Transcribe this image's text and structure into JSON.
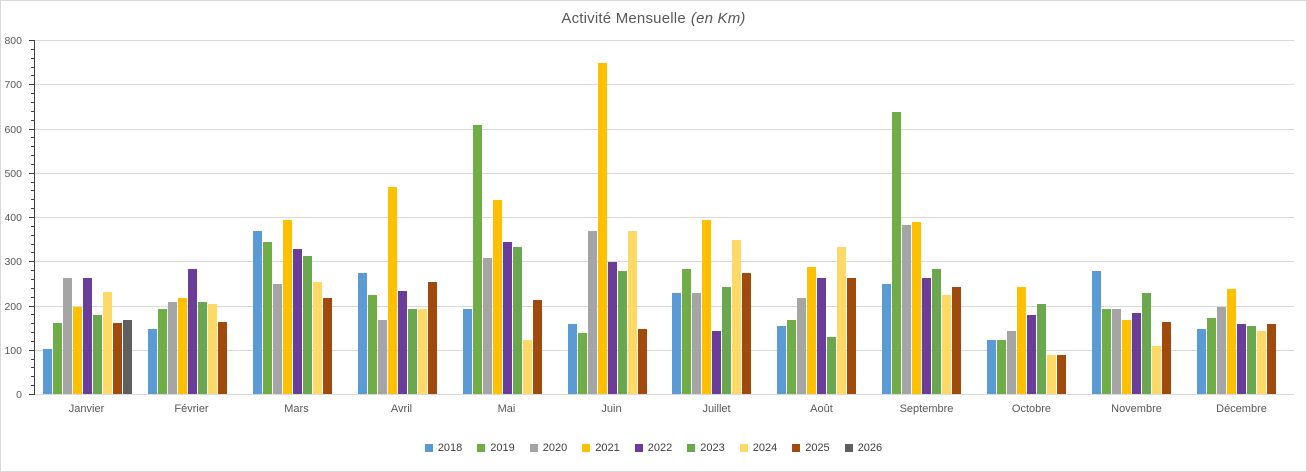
{
  "title": {
    "main": "Activité Mensuelle",
    "sub": "(en Km)"
  },
  "colors": {
    "grid": "#d9d9d9",
    "axis_line": "#3f3f3f",
    "axis_text": "#595959",
    "legend_text": "#404040",
    "background": "#ffffff",
    "border": "#d9d9d9"
  },
  "chart_data": {
    "type": "bar",
    "title": "Activité Mensuelle (en Km)",
    "xlabel": "",
    "ylabel": "",
    "ylim": [
      0,
      800
    ],
    "yticks": [
      0,
      100,
      200,
      300,
      400,
      500,
      600,
      700,
      800
    ],
    "minor_tick_step": 20,
    "grid": "horizontal",
    "legend_position": "bottom",
    "categories": [
      "Janvier",
      "Février",
      "Mars",
      "Avril",
      "Mai",
      "Juin",
      "Juillet",
      "Août",
      "Septembre",
      "Octobre",
      "Novembre",
      "Décembre"
    ],
    "series": [
      {
        "name": "2018",
        "color": "#5B9BD5",
        "values": [
          105,
          150,
          370,
          275,
          195,
          160,
          230,
          155,
          250,
          125,
          280,
          150
        ]
      },
      {
        "name": "2019",
        "color": "#70AD47",
        "values": [
          163,
          195,
          345,
          225,
          610,
          140,
          285,
          170,
          640,
          125,
          195,
          175
        ]
      },
      {
        "name": "2020",
        "color": "#A5A5A5",
        "values": [
          265,
          210,
          250,
          170,
          310,
          370,
          230,
          220,
          385,
          145,
          195,
          200
        ]
      },
      {
        "name": "2021",
        "color": "#FFC000",
        "values": [
          200,
          220,
          395,
          470,
          440,
          750,
          395,
          290,
          390,
          245,
          170,
          240
        ]
      },
      {
        "name": "2022",
        "color": "#6A3D9B",
        "values": [
          265,
          285,
          330,
          235,
          345,
          300,
          145,
          265,
          265,
          180,
          185,
          160
        ]
      },
      {
        "name": "2023",
        "color": "#6AA84F",
        "values": [
          180,
          210,
          315,
          195,
          335,
          280,
          245,
          130,
          285,
          205,
          230,
          155
        ]
      },
      {
        "name": "2024",
        "color": "#FFD966",
        "values": [
          232,
          205,
          255,
          195,
          125,
          370,
          350,
          335,
          225,
          90,
          110,
          145
        ]
      },
      {
        "name": "2025",
        "color": "#A04A0D",
        "values": [
          163,
          165,
          220,
          255,
          215,
          150,
          275,
          265,
          245,
          90,
          165,
          160
        ]
      },
      {
        "name": "2026",
        "color": "#5F5F5F",
        "values": [
          170,
          null,
          null,
          null,
          null,
          null,
          null,
          null,
          null,
          null,
          null,
          null
        ]
      }
    ]
  }
}
